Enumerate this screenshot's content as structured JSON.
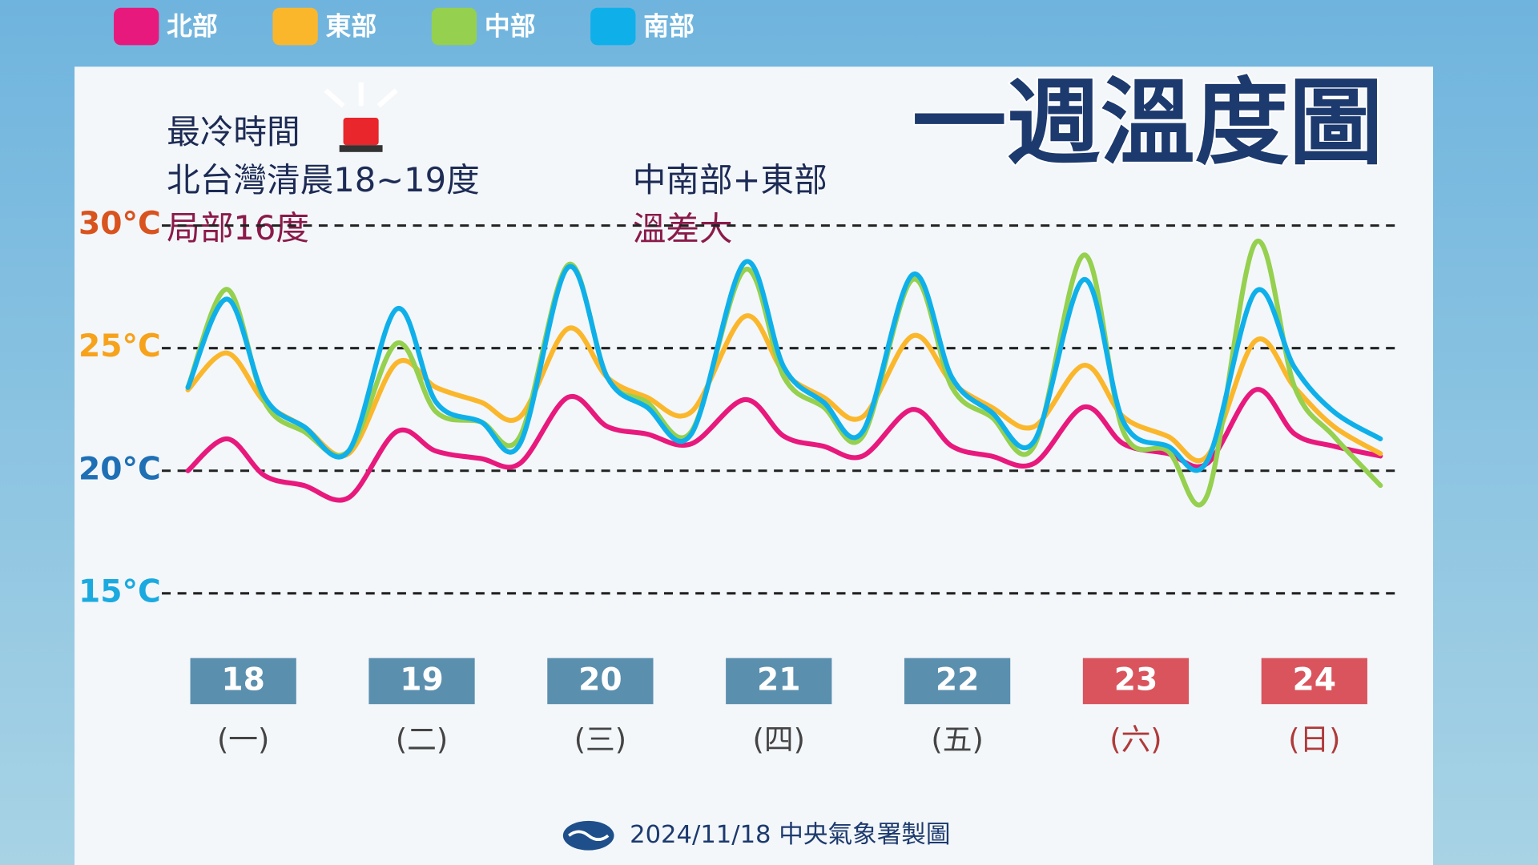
{
  "chart_data": {
    "type": "line",
    "title": "一週溫度圖",
    "annotations": [
      "最冷時間",
      "北台灣清晨18~19度",
      "局部16度",
      "中南部+東部",
      "溫差大"
    ],
    "footer": "2024/11/18 中央氣象署製圖",
    "categories": [
      "18",
      "19",
      "20",
      "21",
      "22",
      "23",
      "24"
    ],
    "weekdays": [
      "(一)",
      "(二)",
      "(三)",
      "(四)",
      "(五)",
      "(六)",
      "(日)"
    ],
    "category_colors": [
      "#5b8fae",
      "#5b8fae",
      "#5b8fae",
      "#5b8fae",
      "#5b8fae",
      "#d9545d",
      "#d9545d"
    ],
    "weekday_colors": [
      "#444444",
      "#444444",
      "#444444",
      "#444444",
      "#444444",
      "#b03a3a",
      "#b03a3a"
    ],
    "xlim": [
      0,
      7
    ],
    "ylim": [
      12.5,
      31
    ],
    "yticks": [
      {
        "value": 15,
        "label": "15°C"
      },
      {
        "value": 20,
        "label": "20°C"
      },
      {
        "value": 25,
        "label": "25°C"
      },
      {
        "value": 30,
        "label": "30°C"
      }
    ],
    "ytick_colors": [
      "#1aaae0",
      "#1f6fb5",
      "#f7a21b",
      "#d9531e"
    ],
    "grid": true,
    "legend": "top",
    "x": [
      0.19,
      0.41,
      0.62,
      0.84,
      1.09,
      1.36,
      1.58,
      1.83,
      2.05,
      2.32,
      2.54,
      2.76,
      3.01,
      3.31,
      3.53,
      3.75,
      3.97,
      4.25,
      4.47,
      4.69,
      4.93,
      5.21,
      5.43,
      5.68,
      5.9,
      6.17,
      6.39,
      6.61,
      6.87
    ],
    "series": [
      {
        "name": "北部",
        "color": "#e8197d",
        "values": [
          20,
          21.3,
          19.8,
          19.4,
          18.9,
          21.6,
          20.8,
          20.5,
          20.3,
          23,
          21.8,
          21.5,
          21.1,
          22.9,
          21.4,
          21,
          20.6,
          22.5,
          21,
          20.6,
          20.3,
          22.6,
          21.1,
          20.7,
          20.3,
          23.3,
          21.5,
          21,
          20.6
        ]
      },
      {
        "name": "東部",
        "color": "#fbb72c",
        "values": [
          23.3,
          24.8,
          22.8,
          21.8,
          20.7,
          24.4,
          23.4,
          22.8,
          22.2,
          25.8,
          23.8,
          23,
          22.4,
          26.3,
          24,
          23,
          22.2,
          25.5,
          23.6,
          22.6,
          21.8,
          24.3,
          22.2,
          21.4,
          20.6,
          25.3,
          23.4,
          21.8,
          20.7
        ]
      },
      {
        "name": "中部",
        "color": "#95d04f",
        "values": [
          23.4,
          27.4,
          22.8,
          21.6,
          20.8,
          25.2,
          22.4,
          22,
          21.4,
          28.4,
          23.8,
          22.8,
          21.6,
          28.2,
          23.8,
          22.6,
          21.4,
          27.8,
          23.4,
          22.2,
          21,
          28.8,
          21.6,
          20.8,
          19,
          29.3,
          23.4,
          21.4,
          19.4
        ]
      },
      {
        "name": "南部",
        "color": "#0fb0ea",
        "values": [
          23.4,
          27,
          23,
          21.8,
          20.8,
          26.6,
          22.8,
          22,
          21.1,
          28.3,
          23.8,
          22.6,
          21.5,
          28.5,
          24.2,
          22.8,
          21.6,
          28,
          23.8,
          22.4,
          21.2,
          27.8,
          22,
          21,
          20.4,
          27.3,
          24.2,
          22.4,
          21.3
        ]
      }
    ]
  }
}
